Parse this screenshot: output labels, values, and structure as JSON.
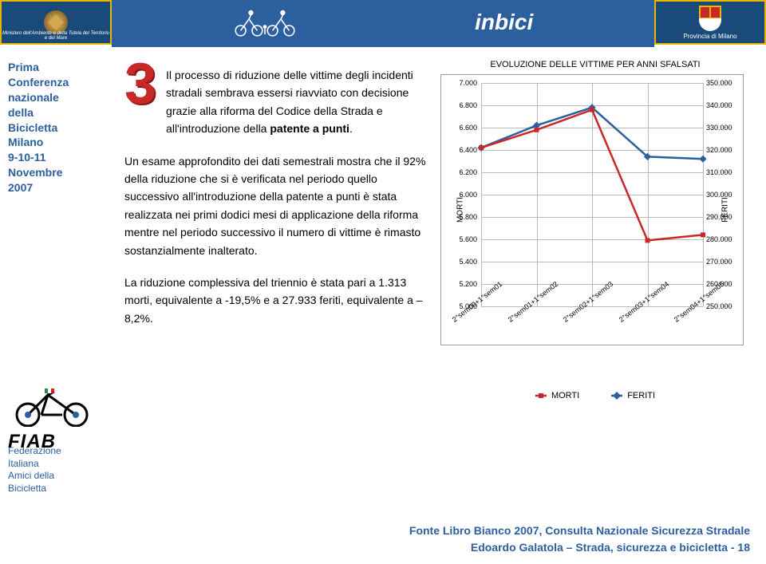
{
  "header": {
    "left_subtitle": "Ministero dell'Ambiente e della Tutela del Territorio e del Mare",
    "inbici_label": "inbici",
    "provincia_label": "Provincia di Milano"
  },
  "sidebar": {
    "conf_line1": "Prima",
    "conf_line2": "Conferenza",
    "conf_line3": "nazionale",
    "conf_line4": "della",
    "conf_line5": "Bicicletta",
    "conf_line6": "Milano",
    "conf_line7": "9-10-11",
    "conf_line8": "Novembre",
    "conf_line9": "2007",
    "fiab_label": "FIAB",
    "fed_line1": "Federazione",
    "fed_line2": "Italiana",
    "fed_line3": "Amici della",
    "fed_line4": "Bicicletta"
  },
  "content": {
    "number": "3",
    "para1_lead": "Il processo di riduzione delle vittime degli incidenti stradali sembrava essersi riavviato con decisione grazie alla riforma del Codice della Strada e all'introduzione della ",
    "para1_bold": "patente a punti",
    "para1_tail": ".",
    "para2": "Un esame approfondito dei dati semestrali mostra che il 92% della riduzione che si è verificata nel periodo quello successivo all'introduzione della patente a punti è stata realizzata nei primi dodici mesi di applicazione della riforma mentre nel periodo successivo il numero di vittime è rimasto sostanzialmente inalterato.",
    "para3": "La riduzione complessiva del triennio è stata pari a 1.313 morti, equivalente a -19,5% e a 27.933 feriti, equivalente a – 8,2%."
  },
  "chart": {
    "title": "EVOLUZIONE DELLE VITTIME PER ANNI SFALSATI",
    "y_left_label": "MORTI",
    "y_right_label": "FERITI",
    "y_left_min": 5000,
    "y_left_max": 7000,
    "y_left_step": 200,
    "y_right_min": 250000,
    "y_right_max": 350000,
    "y_right_step": 10000,
    "y_left_ticks": [
      "5.000",
      "5.200",
      "5.400",
      "5.600",
      "5.800",
      "6.000",
      "6.200",
      "6.400",
      "6.600",
      "6.800",
      "7.000"
    ],
    "y_right_ticks": [
      "250.000",
      "260.000",
      "270.000",
      "280.000",
      "290.000",
      "300.000",
      "310.000",
      "320.000",
      "330.000",
      "340.000",
      "350.000"
    ],
    "x_labels": [
      "2°sem00+1°sem01",
      "2°sem01+1°sem02",
      "2°sem02+1°sem03",
      "2°sem03+1°sem04",
      "2°sem04+1°sem05"
    ],
    "morti_values": [
      6420,
      6580,
      6760,
      5590,
      5640
    ],
    "feriti_values": [
      321000,
      331000,
      339000,
      317000,
      316000
    ],
    "morti_color": "#c82828",
    "feriti_color": "#2b5f9e",
    "grid_color": "#bbbbbb",
    "background": "#ffffff",
    "line_width": 2.5,
    "marker_size": 6,
    "morti_marker": "square",
    "feriti_marker": "diamond",
    "legend_morti": "MORTI",
    "legend_feriti": "FERITI"
  },
  "footer": {
    "source": "Fonte Libro Bianco 2007, Consulta Nazionale Sicurezza Stradale",
    "credit": "Edoardo Galatola – Strada, sicurezza e bicicletta - 18"
  }
}
